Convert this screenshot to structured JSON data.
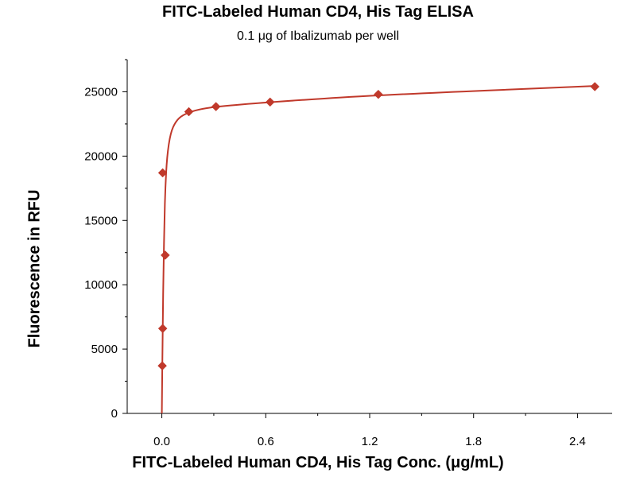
{
  "chart_data": {
    "type": "line",
    "title": "FITC-Labeled Human CD4, His Tag ELISA",
    "subtitle": "0.1 μg of Ibalizumab per well",
    "xlabel": "FITC-Labeled Human CD4, His Tag Conc. (μg/mL)",
    "ylabel": "Fluorescence in RFU",
    "xlim": [
      -0.2,
      2.6
    ],
    "ylim": [
      0,
      27500
    ],
    "x_ticks": [
      0.0,
      0.6,
      1.2,
      1.8,
      2.4
    ],
    "x_tick_labels": [
      "0.0",
      "0.6",
      "1.2",
      "1.8",
      "2.4"
    ],
    "y_ticks": [
      0,
      5000,
      10000,
      15000,
      20000,
      25000
    ],
    "y_tick_labels": [
      "0",
      "5000",
      "10000",
      "15000",
      "20000",
      "25000"
    ],
    "grid": false,
    "series_color": "#c0392b",
    "series": [
      {
        "marker": "diamond",
        "points": [
          {
            "x": 0.0024,
            "y": 3700
          },
          {
            "x": 0.0049,
            "y": 6600
          },
          {
            "x": 0.0195,
            "y": 12300
          },
          {
            "x": 0.0048,
            "y": 18700
          },
          {
            "x": 0.156,
            "y": 23450
          },
          {
            "x": 0.3125,
            "y": 23850
          },
          {
            "x": 0.625,
            "y": 24200
          },
          {
            "x": 1.25,
            "y": 24800
          },
          {
            "x": 2.5,
            "y": 25400
          }
        ],
        "fit_curve": [
          {
            "x": 0.0,
            "y": 0
          },
          {
            "x": 0.005,
            "y": 7000
          },
          {
            "x": 0.01,
            "y": 11500
          },
          {
            "x": 0.015,
            "y": 15000
          },
          {
            "x": 0.02,
            "y": 17500
          },
          {
            "x": 0.03,
            "y": 20000
          },
          {
            "x": 0.05,
            "y": 21800
          },
          {
            "x": 0.08,
            "y": 22700
          },
          {
            "x": 0.12,
            "y": 23200
          },
          {
            "x": 0.2,
            "y": 23600
          },
          {
            "x": 0.3125,
            "y": 23850
          },
          {
            "x": 0.625,
            "y": 24200
          },
          {
            "x": 1.25,
            "y": 24750
          },
          {
            "x": 2.5,
            "y": 25450
          }
        ]
      }
    ]
  }
}
